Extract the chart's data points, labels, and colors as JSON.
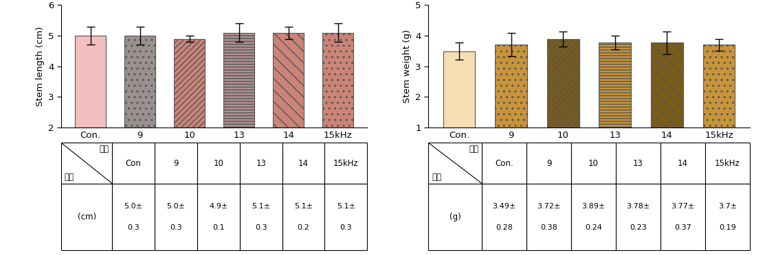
{
  "chart1": {
    "categories": [
      "Con.",
      "9",
      "10",
      "13",
      "14",
      "15kHz"
    ],
    "values": [
      5.0,
      5.0,
      4.9,
      5.1,
      5.1,
      5.1
    ],
    "errors": [
      0.3,
      0.3,
      0.1,
      0.3,
      0.2,
      0.3
    ],
    "ylabel": "Stem length (cm)",
    "ylim": [
      2,
      6
    ],
    "yticks": [
      2,
      3,
      4,
      5,
      6
    ],
    "bar_colors": [
      "#F2BEBE",
      "#9E9595",
      "#CC8080",
      "#9E9595",
      "#CC8080",
      "#CC8080"
    ],
    "bar_hatches": [
      "",
      ".",
      "////",
      "----",
      "\\\\\\\\",
      "...."
    ],
    "table_row1": [
      "Con",
      "9",
      "10",
      "13",
      "14",
      "15kHz"
    ],
    "table_row2_line1": [
      "5.0±",
      "5.0±",
      "4.9±",
      "5.1±",
      "5.1±",
      "5.1±"
    ],
    "table_row2_line2": [
      "0.3",
      "0.3",
      "0.1",
      "0.3",
      "0.2",
      "0.3"
    ],
    "table_unit": "(cm)",
    "table_header_top": "음파",
    "table_header_bot": "길이"
  },
  "chart2": {
    "categories": [
      "Con.",
      "9",
      "10",
      "13",
      "14",
      "15kHz"
    ],
    "values": [
      3.49,
      3.72,
      3.89,
      3.78,
      3.77,
      3.7
    ],
    "errors": [
      0.28,
      0.38,
      0.24,
      0.23,
      0.37,
      0.19
    ],
    "ylabel": "Stem weight (g)",
    "ylim": [
      1,
      5
    ],
    "yticks": [
      1,
      2,
      3,
      4,
      5
    ],
    "bar_colors": [
      "#F5DEB3",
      "#C8943A",
      "#8B6914",
      "#C8943A",
      "#8B6914",
      "#C8943A"
    ],
    "bar_hatches": [
      "",
      ".",
      "////",
      "----",
      "\\\\\\\\",
      "...."
    ],
    "table_row1": [
      "Con.",
      "9",
      "10",
      "13",
      "14",
      "15kHz"
    ],
    "table_row2_line1": [
      "3.49±",
      "3.72±",
      "3.89±",
      "3.78±",
      "3.77±",
      "3.7±"
    ],
    "table_row2_line2": [
      "0.28",
      "0.38",
      "0.24",
      "0.23",
      "0.37",
      "0.19"
    ],
    "table_unit": "(g)",
    "table_header_top": "음파",
    "table_header_bot": "무게"
  }
}
